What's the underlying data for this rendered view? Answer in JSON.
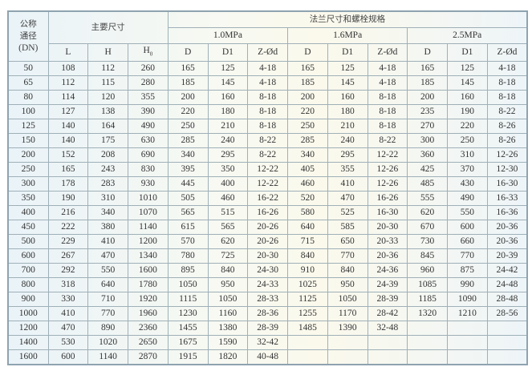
{
  "header": {
    "nominal_diameter": [
      "公称",
      "通径",
      "(DN)"
    ],
    "main_dimensions": "主要尺寸",
    "flange_and_bolts": "法兰尺寸和螺栓规格",
    "pressure_classes": [
      "1.0MPa",
      "1.6MPa",
      "2.5MPa"
    ],
    "main_cols": [
      "L",
      "H",
      "H"
    ],
    "h0_subscript": "0",
    "flange_cols": [
      "D",
      "D1",
      "Z-Ød"
    ]
  },
  "rows": [
    [
      "50",
      "108",
      "112",
      "260",
      "165",
      "125",
      "4-18",
      "165",
      "125",
      "4-18",
      "165",
      "125",
      "4-18"
    ],
    [
      "65",
      "112",
      "115",
      "280",
      "185",
      "145",
      "4-18",
      "185",
      "145",
      "4-18",
      "185",
      "145",
      "8-18"
    ],
    [
      "80",
      "114",
      "120",
      "355",
      "200",
      "160",
      "8-18",
      "200",
      "160",
      "8-18",
      "200",
      "160",
      "8-18"
    ],
    [
      "100",
      "127",
      "138",
      "390",
      "220",
      "180",
      "8-18",
      "220",
      "180",
      "8-18",
      "235",
      "190",
      "8-22"
    ],
    [
      "125",
      "140",
      "164",
      "490",
      "250",
      "210",
      "8-18",
      "250",
      "210",
      "8-18",
      "270",
      "220",
      "8-26"
    ],
    [
      "150",
      "140",
      "175",
      "630",
      "285",
      "240",
      "8-22",
      "285",
      "240",
      "8-22",
      "300",
      "250",
      "8-26"
    ],
    [
      "200",
      "152",
      "208",
      "690",
      "340",
      "295",
      "8-22",
      "340",
      "295",
      "12-22",
      "360",
      "310",
      "12-26"
    ],
    [
      "250",
      "165",
      "243",
      "830",
      "395",
      "350",
      "12-22",
      "405",
      "355",
      "12-26",
      "425",
      "370",
      "12-30"
    ],
    [
      "300",
      "178",
      "283",
      "930",
      "445",
      "400",
      "12-22",
      "460",
      "410",
      "12-26",
      "485",
      "430",
      "16-30"
    ],
    [
      "350",
      "190",
      "310",
      "1010",
      "505",
      "460",
      "16-22",
      "520",
      "470",
      "16-26",
      "555",
      "490",
      "16-33"
    ],
    [
      "400",
      "216",
      "340",
      "1070",
      "565",
      "515",
      "16-26",
      "580",
      "525",
      "16-30",
      "620",
      "550",
      "16-36"
    ],
    [
      "450",
      "222",
      "380",
      "1140",
      "615",
      "565",
      "20-26",
      "640",
      "585",
      "20-30",
      "670",
      "600",
      "20-36"
    ],
    [
      "500",
      "229",
      "410",
      "1200",
      "570",
      "620",
      "20-26",
      "715",
      "650",
      "20-33",
      "730",
      "660",
      "20-36"
    ],
    [
      "600",
      "267",
      "470",
      "1340",
      "780",
      "725",
      "20-30",
      "840",
      "770",
      "20-36",
      "845",
      "770",
      "20-39"
    ],
    [
      "700",
      "292",
      "550",
      "1600",
      "895",
      "840",
      "24-30",
      "910",
      "840",
      "24-36",
      "960",
      "875",
      "24-42"
    ],
    [
      "800",
      "318",
      "640",
      "1780",
      "1050",
      "950",
      "24-33",
      "1025",
      "950",
      "24-39",
      "1085",
      "990",
      "24-48"
    ],
    [
      "900",
      "330",
      "710",
      "1920",
      "1115",
      "1050",
      "28-33",
      "1125",
      "1050",
      "28-39",
      "1185",
      "1090",
      "28-48"
    ],
    [
      "1000",
      "410",
      "770",
      "1960",
      "1230",
      "1160",
      "28-36",
      "1255",
      "1170",
      "28-42",
      "1320",
      "1210",
      "28-56"
    ],
    [
      "1200",
      "470",
      "890",
      "2360",
      "1455",
      "1380",
      "28-39",
      "1485",
      "1390",
      "32-48",
      "",
      "",
      ""
    ],
    [
      "1400",
      "530",
      "1020",
      "2650",
      "1675",
      "1590",
      "32-42",
      "",
      "",
      "",
      "",
      "",
      ""
    ],
    [
      "1600",
      "600",
      "1140",
      "2870",
      "1915",
      "1820",
      "40-48",
      "",
      "",
      "",
      "",
      "",
      ""
    ]
  ]
}
